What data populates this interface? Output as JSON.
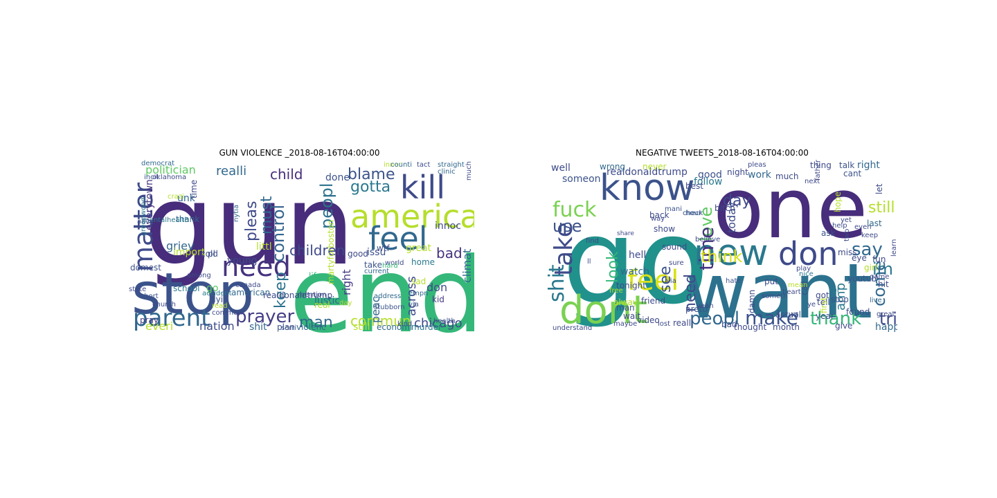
{
  "panels": [
    {
      "title": "GUN VIOLENCE _2018-08-16T04:00:00",
      "words": [
        {
          "text": "gun",
          "color": "#472d7b"
        },
        {
          "text": "end",
          "color": "#35b779"
        },
        {
          "text": "stop",
          "color": "#3b528b"
        },
        {
          "text": "america",
          "color": "#b5de2b"
        },
        {
          "text": "kill",
          "color": "#3e4a89"
        },
        {
          "text": "feel",
          "color": "#31688e"
        },
        {
          "text": "need",
          "color": "#46327e"
        },
        {
          "text": "matter",
          "color": "#3e4a89"
        },
        {
          "text": "parent",
          "color": "#31688e"
        },
        {
          "text": "prayer",
          "color": "#433e85"
        },
        {
          "text": "gotta",
          "color": "#2a788e"
        },
        {
          "text": "blame",
          "color": "#3b528b"
        },
        {
          "text": "children",
          "color": "#3e4a89"
        },
        {
          "text": "control",
          "color": "#33638d"
        },
        {
          "text": "peopl",
          "color": "#2c728e"
        },
        {
          "text": "commun",
          "color": "#b5de2b"
        },
        {
          "text": "chicago",
          "color": "#3e4a89"
        },
        {
          "text": "man",
          "color": "#31688e"
        },
        {
          "text": "keep",
          "color": "#2c728e"
        },
        {
          "text": "must",
          "color": "#31688e"
        },
        {
          "text": "pleas",
          "color": "#3e4a89"
        },
        {
          "text": "child",
          "color": "#472d7b"
        },
        {
          "text": "realli",
          "color": "#31688e"
        },
        {
          "text": "politician",
          "color": "#5ec962"
        },
        {
          "text": "everytown",
          "color": "#46327e"
        },
        {
          "text": "bad",
          "color": "#46327e"
        },
        {
          "text": "innoc",
          "color": "#3e4a89"
        },
        {
          "text": "great",
          "color": "#b5de2b"
        },
        {
          "text": "issu",
          "color": "#3b528b"
        },
        {
          "text": "littl",
          "color": "#b5de2b"
        },
        {
          "text": "griev",
          "color": "#31688e"
        },
        {
          "text": "young",
          "color": "#3e4a89"
        },
        {
          "text": "done",
          "color": "#3b528b"
        },
        {
          "text": "don",
          "color": "#3e4a89"
        },
        {
          "text": "across",
          "color": "#3e4a89"
        },
        {
          "text": "climat",
          "color": "#31688e"
        },
        {
          "text": "peac",
          "color": "#31688e"
        },
        {
          "text": "justic",
          "color": "#31688e"
        },
        {
          "text": "right",
          "color": "#443983"
        },
        {
          "text": "everi",
          "color": "#b5de2b"
        },
        {
          "text": "nation",
          "color": "#3e4a89"
        },
        {
          "text": "shit",
          "color": "#31688e"
        },
        {
          "text": "still",
          "color": "#b5de2b"
        },
        {
          "text": "domest",
          "color": "#3b528b"
        },
        {
          "text": "school",
          "color": "#2a788e"
        },
        {
          "text": "american",
          "color": "#31688e"
        },
        {
          "text": "accident",
          "color": "#2a788e"
        },
        {
          "text": "church",
          "color": "#3e4a89"
        },
        {
          "text": "pray",
          "color": "#443983"
        },
        {
          "text": "plan",
          "color": "#3b528b"
        },
        {
          "text": "violenc",
          "color": "#31688e"
        },
        {
          "text": "economi",
          "color": "#31688e"
        },
        {
          "text": "murder",
          "color": "#2a788e"
        },
        {
          "text": "life",
          "color": "#35b779"
        },
        {
          "text": "kid",
          "color": "#443983"
        },
        {
          "text": "sad",
          "color": "#b5de2b"
        },
        {
          "text": "home",
          "color": "#2a788e"
        },
        {
          "text": "take",
          "color": "#3b528b"
        },
        {
          "text": "current",
          "color": "#31688e"
        },
        {
          "text": "martyforboston",
          "color": "#b5de2b"
        },
        {
          "text": "good",
          "color": "#3e4a89"
        },
        {
          "text": "thank",
          "color": "#31688e"
        },
        {
          "text": "import",
          "color": "#b5de2b"
        },
        {
          "text": "go",
          "color": "#5ec962"
        },
        {
          "text": "dyin",
          "color": "#3b528b"
        },
        {
          "text": "real",
          "color": "#b5de2b"
        },
        {
          "text": "read",
          "color": "#b5de2b"
        },
        {
          "text": "comment",
          "color": "#3e4a89"
        },
        {
          "text": "day",
          "color": "#b5de2b"
        },
        {
          "text": "address",
          "color": "#31688e"
        },
        {
          "text": "stubborn",
          "color": "#3b528b"
        },
        {
          "text": "inner",
          "color": "#b5de2b"
        },
        {
          "text": "among",
          "color": "#3e4a89"
        },
        {
          "text": "unk",
          "color": "#31688e"
        },
        {
          "text": "time",
          "color": "#3e4a89"
        },
        {
          "text": "cold",
          "color": "#3b528b"
        },
        {
          "text": "pl",
          "color": "#3e4a89"
        },
        {
          "text": "nytia",
          "color": "#31688e"
        },
        {
          "text": "realdonaldtrump",
          "color": "#3e4a89"
        },
        {
          "text": "clinic",
          "color": "#31688e"
        },
        {
          "text": "much",
          "color": "#3e4a89"
        },
        {
          "text": "straight",
          "color": "#31688e"
        },
        {
          "text": "tact",
          "color": "#3e4a89"
        },
        {
          "text": "counti",
          "color": "#31688e"
        },
        {
          "text": "incit",
          "color": "#3b528b"
        },
        {
          "text": "oklahoma",
          "color": "#3e4a89"
        },
        {
          "text": "democrat",
          "color": "#31688e"
        },
        {
          "text": "mentalhealth",
          "color": "#2a788e"
        },
        {
          "text": "greenwood",
          "color": "#2a788e"
        },
        {
          "text": "state",
          "color": "#3e4a89"
        },
        {
          "text": "abort",
          "color": "#3b528b"
        },
        {
          "text": "world",
          "color": "#3e4a89"
        },
        {
          "text": "via",
          "color": "#3b528b"
        },
        {
          "text": "empn",
          "color": "#31688e"
        },
        {
          "text": "wtf",
          "color": "#3e4a89"
        },
        {
          "text": "hard",
          "color": "#35b779"
        },
        {
          "text": "health",
          "color": "#3b528b"
        },
        {
          "text": "kind",
          "color": "#3e4a89"
        },
        {
          "text": "sorri",
          "color": "#3b528b"
        },
        {
          "text": "mention",
          "color": "#3e4a89"
        },
        {
          "text": "crazi",
          "color": "#b5de2b"
        },
        {
          "text": "canada",
          "color": "#3e4a89"
        },
        {
          "text": "alive",
          "color": "#3b528b"
        }
      ]
    },
    {
      "title": "NEGATIVE TWEETS_2018-08-16T04:00:00",
      "words": [
        {
          "text": "go",
          "color": "#21918c"
        },
        {
          "text": "one",
          "color": "#472d7b"
        },
        {
          "text": "want",
          "color": "#2c728e"
        },
        {
          "text": "know",
          "color": "#3b528b"
        },
        {
          "text": "dont",
          "color": "#7ad151"
        },
        {
          "text": "new",
          "color": "#2a788e"
        },
        {
          "text": "don",
          "color": "#3e4a89"
        },
        {
          "text": "feel",
          "color": "#d8e219"
        },
        {
          "text": "fuck",
          "color": "#7ad151"
        },
        {
          "text": "take",
          "color": "#3e4a89"
        },
        {
          "text": "shit",
          "color": "#2a788e"
        },
        {
          "text": "use",
          "color": "#3b528b"
        },
        {
          "text": "love",
          "color": "#5ec962"
        },
        {
          "text": "time",
          "color": "#46327e"
        },
        {
          "text": "say",
          "color": "#31688e"
        },
        {
          "text": "im",
          "color": "#2a788e"
        },
        {
          "text": "still",
          "color": "#b5de2b"
        },
        {
          "text": "day",
          "color": "#3e4a89"
        },
        {
          "text": "think",
          "color": "#d8e219"
        },
        {
          "text": "look",
          "color": "#35b779"
        },
        {
          "text": "see",
          "color": "#3b528b"
        },
        {
          "text": "need",
          "color": "#3e4a89"
        },
        {
          "text": "peopl",
          "color": "#31688e"
        },
        {
          "text": "make",
          "color": "#3b528b"
        },
        {
          "text": "thank",
          "color": "#35b779"
        },
        {
          "text": "tri",
          "color": "#3e4a89"
        },
        {
          "text": "come",
          "color": "#31688e"
        },
        {
          "text": "amp",
          "color": "#2a788e"
        },
        {
          "text": "realdonaldtrump",
          "color": "#3e4a89"
        },
        {
          "text": "good",
          "color": "#3b528b"
        },
        {
          "text": "night",
          "color": "#3e4a89"
        },
        {
          "text": "work",
          "color": "#31688e"
        },
        {
          "text": "much",
          "color": "#3e4a89"
        },
        {
          "text": "thing",
          "color": "#3e4a89"
        },
        {
          "text": "talk",
          "color": "#3b528b"
        },
        {
          "text": "right",
          "color": "#31688e"
        },
        {
          "text": "cant",
          "color": "#3b528b"
        },
        {
          "text": "let",
          "color": "#3e4a89"
        },
        {
          "text": "last",
          "color": "#31688e"
        },
        {
          "text": "hope",
          "color": "#b5de2b"
        },
        {
          "text": "today",
          "color": "#3e4a89"
        },
        {
          "text": "follow",
          "color": "#2a788e"
        },
        {
          "text": "well",
          "color": "#3e4a89"
        },
        {
          "text": "someon",
          "color": "#3b528b"
        },
        {
          "text": "wrong",
          "color": "#31688e"
        },
        {
          "text": "hell",
          "color": "#3e4a89"
        },
        {
          "text": "watch",
          "color": "#31688e"
        },
        {
          "text": "wait",
          "color": "#3e4a89"
        },
        {
          "text": "tonight",
          "color": "#3e4a89"
        },
        {
          "text": "never",
          "color": "#b5de2b"
        },
        {
          "text": "back",
          "color": "#3e4a89"
        },
        {
          "text": "mani",
          "color": "#3b528b"
        },
        {
          "text": "hour",
          "color": "#31688e"
        },
        {
          "text": "best",
          "color": "#3e4a89"
        },
        {
          "text": "bitch",
          "color": "#3e4a89"
        },
        {
          "text": "ask",
          "color": "#3b528b"
        },
        {
          "text": "miss",
          "color": "#3e4a89"
        },
        {
          "text": "eye",
          "color": "#3e4a89"
        },
        {
          "text": "girl",
          "color": "#b5de2b"
        },
        {
          "text": "fun",
          "color": "#3e4a89"
        },
        {
          "text": "hit",
          "color": "#3e4a89"
        },
        {
          "text": "game",
          "color": "#3e4a89"
        },
        {
          "text": "live",
          "color": "#31688e"
        },
        {
          "text": "youtub",
          "color": "#3b528b"
        },
        {
          "text": "lol",
          "color": "#2a788e"
        },
        {
          "text": "tell",
          "color": "#3e4a89"
        },
        {
          "text": "year",
          "color": "#3e4a89"
        },
        {
          "text": "give",
          "color": "#3e4a89"
        },
        {
          "text": "happenlife",
          "color": "#31688e"
        },
        {
          "text": "first",
          "color": "#b5de2b"
        },
        {
          "text": "got",
          "color": "#3e4a89"
        },
        {
          "text": "stop",
          "color": "#3b528b"
        },
        {
          "text": "found",
          "color": "#3e4a89"
        },
        {
          "text": "great",
          "color": "#3e4a89"
        },
        {
          "text": "put",
          "color": "#3e4a89"
        },
        {
          "text": "thought",
          "color": "#3e4a89"
        },
        {
          "text": "month",
          "color": "#3e4a89"
        },
        {
          "text": "actual",
          "color": "#3b528b"
        },
        {
          "text": "bad",
          "color": "#3e4a89"
        },
        {
          "text": "damn",
          "color": "#3e4a89"
        },
        {
          "text": "hate",
          "color": "#3b528b"
        },
        {
          "text": "sure",
          "color": "#3e4a89"
        },
        {
          "text": "sound",
          "color": "#3e4a89"
        },
        {
          "text": "video",
          "color": "#3e4a89"
        },
        {
          "text": "realli",
          "color": "#3e4a89"
        },
        {
          "text": "pretti",
          "color": "#3b528b"
        },
        {
          "text": "yeah",
          "color": "#3e4a89"
        },
        {
          "text": "friend",
          "color": "#3e4a89"
        },
        {
          "text": "maybe",
          "color": "#3e4a89"
        },
        {
          "text": "man",
          "color": "#3e4a89"
        },
        {
          "text": "alway",
          "color": "#b5de2b"
        },
        {
          "text": "free",
          "color": "#b5de2b"
        },
        {
          "text": "ll",
          "color": "#3e4a89"
        },
        {
          "text": "find",
          "color": "#3e4a89"
        },
        {
          "text": "show",
          "color": "#3e4a89"
        },
        {
          "text": "way",
          "color": "#3e4a89"
        },
        {
          "text": "check",
          "color": "#3e4a89"
        },
        {
          "text": "next",
          "color": "#3e4a89"
        },
        {
          "text": "help",
          "color": "#3e4a89"
        },
        {
          "text": "yet",
          "color": "#3e4a89"
        },
        {
          "text": "even",
          "color": "#3e4a89"
        },
        {
          "text": "keep",
          "color": "#3e4a89"
        },
        {
          "text": "learn",
          "color": "#3e4a89"
        },
        {
          "text": "nice",
          "color": "#2a788e"
        },
        {
          "text": "ye",
          "color": "#3e4a89"
        },
        {
          "text": "us",
          "color": "#3e4a89"
        },
        {
          "text": "call",
          "color": "#3e4a89"
        },
        {
          "text": "heart",
          "color": "#3e4a89"
        },
        {
          "text": "someth",
          "color": "#3e4a89"
        },
        {
          "text": "play",
          "color": "#3e4a89"
        },
        {
          "text": "mean",
          "color": "#b5de2b"
        },
        {
          "text": "father",
          "color": "#3e4a89"
        },
        {
          "text": "understand",
          "color": "#3e4a89"
        },
        {
          "text": "via",
          "color": "#3e4a89"
        },
        {
          "text": "lost",
          "color": "#3e4a89"
        },
        {
          "text": "believe",
          "color": "#3e4a89"
        },
        {
          "text": "pleas",
          "color": "#3e4a89"
        },
        {
          "text": "two",
          "color": "#3e4a89"
        },
        {
          "text": "share",
          "color": "#3e4a89"
        }
      ]
    }
  ]
}
